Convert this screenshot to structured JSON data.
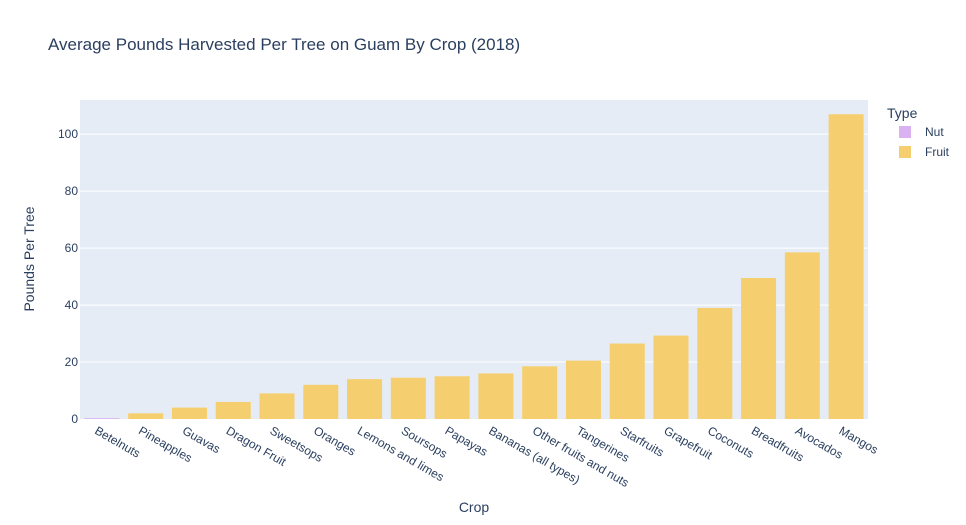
{
  "chart_data": {
    "type": "bar",
    "title": "Average Pounds Harvested Per Tree on Guam By Crop (2018)",
    "xlabel": "Crop",
    "ylabel": "Pounds Per Tree",
    "ylim": [
      0,
      112
    ],
    "yticks": [
      0,
      20,
      40,
      60,
      80,
      100
    ],
    "grid": true,
    "legend_title": "Type",
    "legend_position": "top-right",
    "categories": [
      "Betelnuts",
      "Pineapples",
      "Guavas",
      "Dragon Fruit",
      "Sweetsops",
      "Oranges",
      "Lemons and limes",
      "Soursops",
      "Papayas",
      "Bananas (all types)",
      "Other fruits and nuts",
      "Tangerines",
      "Starfruits",
      "Grapefruit",
      "Coconuts",
      "Breadfruits",
      "Avocados",
      "Mangos"
    ],
    "series": [
      {
        "name": "Nut",
        "color": "#dab2f1",
        "values": [
          0.3,
          null,
          null,
          null,
          null,
          null,
          null,
          null,
          null,
          null,
          null,
          null,
          null,
          null,
          null,
          null,
          null,
          null
        ]
      },
      {
        "name": "Fruit",
        "color": "#f5cf6f",
        "values": [
          null,
          2,
          4,
          6,
          9,
          12,
          14,
          14.5,
          15,
          16,
          18.5,
          20.5,
          26.5,
          29.3,
          39,
          49.5,
          58.5,
          107
        ]
      }
    ]
  },
  "colors": {
    "plot_background": "#e5ecf6",
    "gridline": "#ffffff",
    "text": "#2a3f5f"
  }
}
